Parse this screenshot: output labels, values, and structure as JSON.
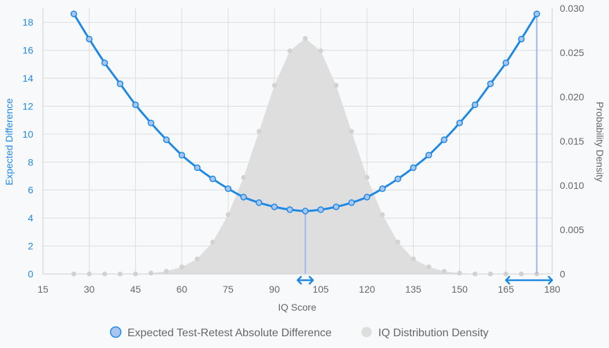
{
  "chart_data": {
    "type": "line",
    "xlabel": "IQ Score",
    "y_left_label": "Expected Difference",
    "y_right_label": "Probability Density",
    "xlim": [
      15,
      180
    ],
    "x_ticks": [
      15,
      30,
      45,
      60,
      75,
      90,
      105,
      120,
      135,
      150,
      165,
      180
    ],
    "y_left_lim": [
      0,
      19
    ],
    "y_left_ticks": [
      0,
      2,
      4,
      6,
      8,
      10,
      12,
      14,
      16,
      18
    ],
    "y_right_lim": [
      0,
      0.03
    ],
    "y_right_ticks": [
      0,
      0.005,
      0.01,
      0.015,
      0.02,
      0.025,
      0.03
    ],
    "y_right_tick_labels": [
      "0",
      "0.005",
      "0.010",
      "0.015",
      "0.020",
      "0.025",
      "0.030"
    ],
    "grid": true,
    "legend_position": "bottom",
    "series": [
      {
        "name": "Expected Test-Retest Absolute Difference",
        "axis": "left",
        "style": "line",
        "color": "#1e88e5",
        "x": [
          25,
          30,
          35,
          40,
          45,
          50,
          55,
          60,
          65,
          70,
          75,
          80,
          85,
          90,
          95,
          100,
          105,
          110,
          115,
          120,
          125,
          130,
          135,
          140,
          145,
          150,
          155,
          160,
          165,
          170,
          175
        ],
        "y": [
          18.6,
          16.8,
          15.1,
          13.6,
          12.1,
          10.8,
          9.6,
          8.5,
          7.6,
          6.8,
          6.1,
          5.5,
          5.1,
          4.8,
          4.6,
          4.5,
          4.6,
          4.8,
          5.1,
          5.5,
          6.1,
          6.8,
          7.6,
          8.5,
          9.6,
          10.8,
          12.1,
          13.6,
          15.1,
          16.8,
          18.6
        ]
      },
      {
        "name": "IQ Distribution Density",
        "axis": "right",
        "style": "area",
        "color": "#cccccc",
        "x": [
          25,
          30,
          35,
          40,
          45,
          50,
          55,
          60,
          65,
          70,
          75,
          80,
          85,
          90,
          95,
          100,
          105,
          110,
          115,
          120,
          125,
          130,
          135,
          140,
          145,
          150,
          155,
          160,
          165,
          170,
          175
        ],
        "y": [
          0.0,
          0.0,
          0.0,
          0.0,
          0.0,
          0.0001,
          0.0003,
          0.0008,
          0.0017,
          0.0036,
          0.0067,
          0.0109,
          0.0161,
          0.0213,
          0.0252,
          0.0266,
          0.0252,
          0.0213,
          0.0161,
          0.0109,
          0.0067,
          0.0036,
          0.0017,
          0.0008,
          0.0003,
          0.0001,
          0.0,
          0.0,
          0.0,
          0.0,
          0.0
        ]
      }
    ],
    "annotations": [
      {
        "type": "vertical-line",
        "x": 100,
        "y": 4.5,
        "color": "#9bb5ee"
      },
      {
        "type": "vertical-line",
        "x": 175,
        "y": 18.6,
        "color": "#9bb5ee"
      },
      {
        "type": "x-range-arrow",
        "from": 97.5,
        "to": 102.5,
        "color": "#1e88e5"
      },
      {
        "type": "x-range-arrow",
        "from": 165,
        "to": 180,
        "color": "#1e88e5"
      }
    ]
  }
}
